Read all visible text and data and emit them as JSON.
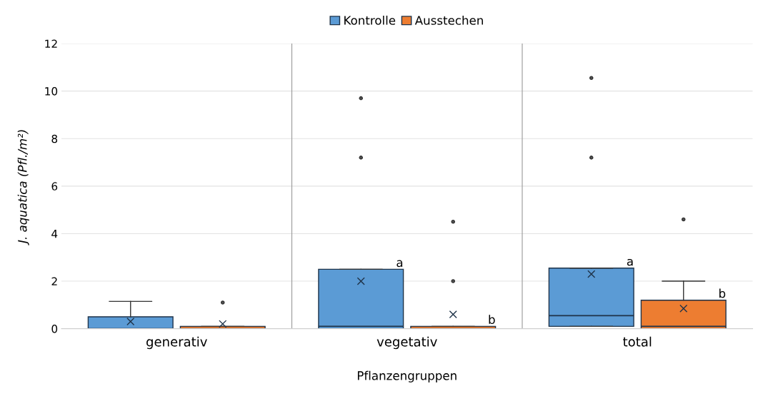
{
  "chart_data": {
    "type": "box",
    "xlabel": "Pflanzengruppen",
    "ylabel": "J. aquatica (Pfl./m²)",
    "categories": [
      "generativ",
      "vegetativ",
      "total"
    ],
    "ylim": [
      0,
      12
    ],
    "yticks": [
      0,
      2,
      4,
      6,
      8,
      10,
      12
    ],
    "grid": "y",
    "legend": "top",
    "series": [
      {
        "name": "Kontrolle",
        "color": "#5b9bd5",
        "value_labels": [
          null,
          "a",
          "a"
        ],
        "boxes": [
          {
            "low": 0,
            "q1": 0,
            "median": 0,
            "q3": 0.5,
            "high": 1.15,
            "mean": 0.3
          },
          {
            "low": 0,
            "q1": 0,
            "median": 0.1,
            "q3": 2.5,
            "high": 2.5,
            "mean": 2.0,
            "outliers": [
              7.2,
              9.7
            ]
          },
          {
            "low": 0.1,
            "q1": 0.1,
            "median": 0.55,
            "q3": 2.55,
            "high": 2.55,
            "mean": 2.3,
            "outliers": [
              7.2,
              10.55
            ]
          }
        ]
      },
      {
        "name": "Ausstechen",
        "color": "#ed7d31",
        "value_labels": [
          null,
          "b",
          "b"
        ],
        "boxes": [
          {
            "low": 0,
            "q1": 0,
            "median": 0,
            "q3": 0.1,
            "high": 0.1,
            "mean": 0.2,
            "outliers": [
              1.1
            ]
          },
          {
            "low": 0,
            "q1": 0,
            "median": 0,
            "q3": 0.1,
            "high": 0.1,
            "mean": 0.6,
            "outliers": [
              2.0,
              4.5
            ]
          },
          {
            "low": 0,
            "q1": 0,
            "median": 0.1,
            "q3": 1.2,
            "high": 2.0,
            "mean": 0.85,
            "outliers": [
              4.6
            ]
          }
        ]
      }
    ]
  }
}
